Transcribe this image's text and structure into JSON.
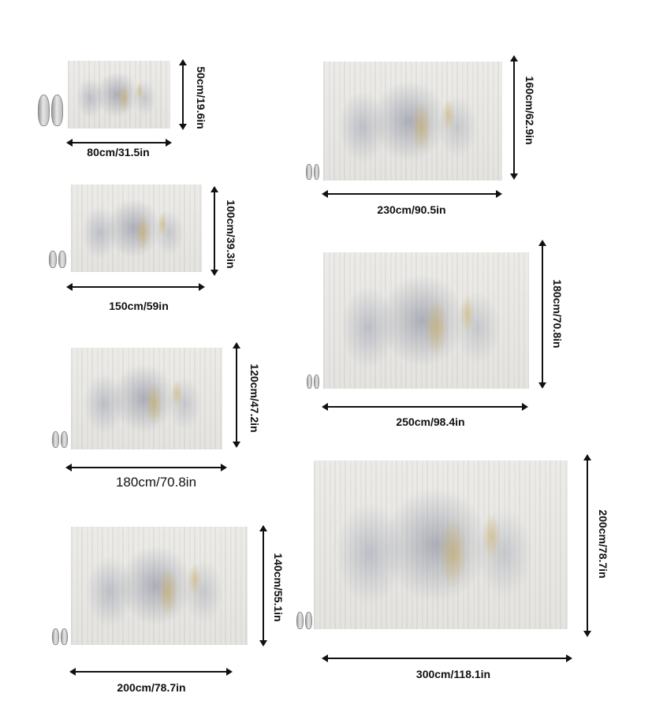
{
  "sizes": [
    {
      "width": "80cm/31.5in",
      "height": "50cm/19.6in"
    },
    {
      "width": "150cm/59in",
      "height": "100cm/39.3in"
    },
    {
      "width": "180cm/70.8in",
      "height": "120cm/47.2in"
    },
    {
      "width": "200cm/78.7in",
      "height": "140cm/55.1in"
    },
    {
      "width": "230cm/90.5in",
      "height": "160cm/62.9in"
    },
    {
      "width": "250cm/98.4in",
      "height": "180cm/70.8in"
    },
    {
      "width": "300cm/118.1in",
      "height": "200cm/78.7in"
    }
  ],
  "icons": {
    "scale_reference": "slippers-icon"
  }
}
